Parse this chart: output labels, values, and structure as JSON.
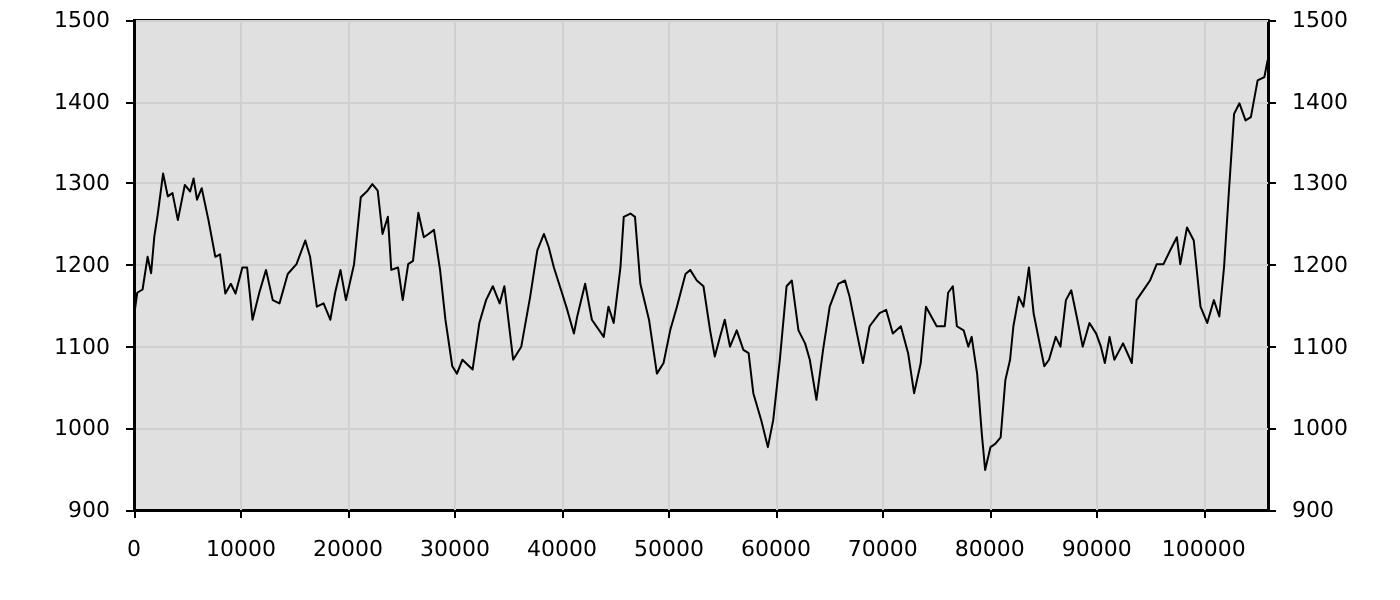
{
  "chart_data": {
    "type": "line",
    "grid": true,
    "marker": "none",
    "line_style": "solid",
    "xlim": [
      0,
      106000
    ],
    "xticks": [
      0,
      10000,
      20000,
      30000,
      40000,
      50000,
      60000,
      70000,
      80000,
      90000,
      100000
    ],
    "ylim": [
      900,
      1500
    ],
    "yticks": [
      900,
      1000,
      1100,
      1200,
      1300,
      1400,
      1500
    ],
    "y2lim": [
      900,
      1500
    ],
    "y2ticks": [
      900,
      1000,
      1100,
      1200,
      1300,
      1400,
      1500
    ],
    "series": [
      {
        "color": "#000000",
        "x": [
          0,
          300,
          800,
          1270,
          1600,
          1900,
          2220,
          2720,
          3160,
          3600,
          4100,
          4750,
          5250,
          5570,
          5890,
          6330,
          6960,
          7600,
          8040,
          8540,
          9050,
          9490,
          10130,
          10570,
          11080,
          11710,
          12340,
          12970,
          13600,
          14370,
          15190,
          16010,
          16460,
          17090,
          17720,
          18350,
          18800,
          19300,
          19810,
          20570,
          21200,
          21830,
          22280,
          22780,
          23230,
          23730,
          24050,
          24680,
          25120,
          25630,
          26080,
          26580,
          27090,
          27530,
          28040,
          28610,
          29110,
          29750,
          30190,
          30700,
          31650,
          32280,
          32910,
          33540,
          34180,
          34620,
          35440,
          36200,
          37030,
          37700,
          38320,
          38760,
          39250,
          40000,
          40500,
          41120,
          41430,
          42170,
          42800,
          43910,
          44350,
          44840,
          45470,
          45780,
          46400,
          46830,
          47330,
          48140,
          48880,
          49500,
          50120,
          50750,
          51550,
          51990,
          52610,
          53230,
          53850,
          54290,
          54780,
          55220,
          55710,
          56340,
          56960,
          57450,
          57890,
          58630,
          59250,
          59750,
          60370,
          61000,
          61490,
          62110,
          62730,
          63170,
          63790,
          64410,
          65030,
          65840,
          66460,
          66890,
          67520,
          68140,
          68760,
          69690,
          70310,
          70930,
          71680,
          72360,
          72920,
          73540,
          74030,
          75030,
          75790,
          76100,
          76540,
          76920,
          77550,
          77990,
          78300,
          78810,
          79250,
          79560,
          80060,
          80500,
          81010,
          81450,
          81890,
          82200,
          82700,
          83140,
          83650,
          84090,
          84590,
          85090,
          85530,
          86160,
          86600,
          87110,
          87610,
          88180,
          88680,
          89310,
          89940,
          90380,
          90750,
          91190,
          91640,
          92450,
          93270,
          93710,
          94340,
          94970,
          95600,
          96230,
          96860,
          97480,
          97800,
          98430,
          99060,
          99690,
          100320,
          100940,
          101450,
          101890,
          102330,
          102830,
          103330,
          103900,
          104400,
          105030,
          105660,
          105970
        ],
        "values": [
          1137,
          1166,
          1170,
          1210,
          1190,
          1235,
          1262,
          1312,
          1284,
          1288,
          1255,
          1298,
          1290,
          1306,
          1280,
          1294,
          1255,
          1210,
          1213,
          1165,
          1177,
          1165,
          1197,
          1197,
          1133,
          1166,
          1194,
          1157,
          1153,
          1189,
          1201,
          1230,
          1210,
          1149,
          1153,
          1133,
          1166,
          1194,
          1157,
          1201,
          1283,
          1291,
          1299,
          1291,
          1238,
          1259,
          1194,
          1197,
          1157,
          1201,
          1205,
          1264,
          1234,
          1238,
          1243,
          1194,
          1133,
          1076,
          1067,
          1084,
          1072,
          1129,
          1157,
          1174,
          1153,
          1174,
          1084,
          1100,
          1161,
          1218,
          1238,
          1222,
          1197,
          1166,
          1145,
          1116,
          1137,
          1177,
          1133,
          1112,
          1149,
          1129,
          1197,
          1259,
          1263,
          1259,
          1177,
          1133,
          1067,
          1080,
          1120,
          1149,
          1189,
          1194,
          1181,
          1174,
          1120,
          1088,
          1112,
          1133,
          1100,
          1120,
          1096,
          1092,
          1043,
          1010,
          977,
          1010,
          1084,
          1174,
          1181,
          1120,
          1104,
          1084,
          1035,
          1096,
          1149,
          1177,
          1181,
          1161,
          1120,
          1080,
          1125,
          1141,
          1145,
          1116,
          1125,
          1092,
          1043,
          1080,
          1149,
          1125,
          1125,
          1166,
          1174,
          1125,
          1120,
          1100,
          1112,
          1067,
          993,
          949,
          977,
          981,
          989,
          1059,
          1084,
          1125,
          1161,
          1149,
          1197,
          1141,
          1108,
          1076,
          1084,
          1112,
          1100,
          1157,
          1169,
          1133,
          1100,
          1129,
          1116,
          1100,
          1080,
          1112,
          1084,
          1104,
          1080,
          1157,
          1169,
          1181,
          1201,
          1201,
          1218,
          1234,
          1201,
          1246,
          1230,
          1149,
          1129,
          1157,
          1137,
          1197,
          1287,
          1385,
          1398,
          1377,
          1381,
          1426,
          1430,
          1451
        ]
      }
    ]
  }
}
